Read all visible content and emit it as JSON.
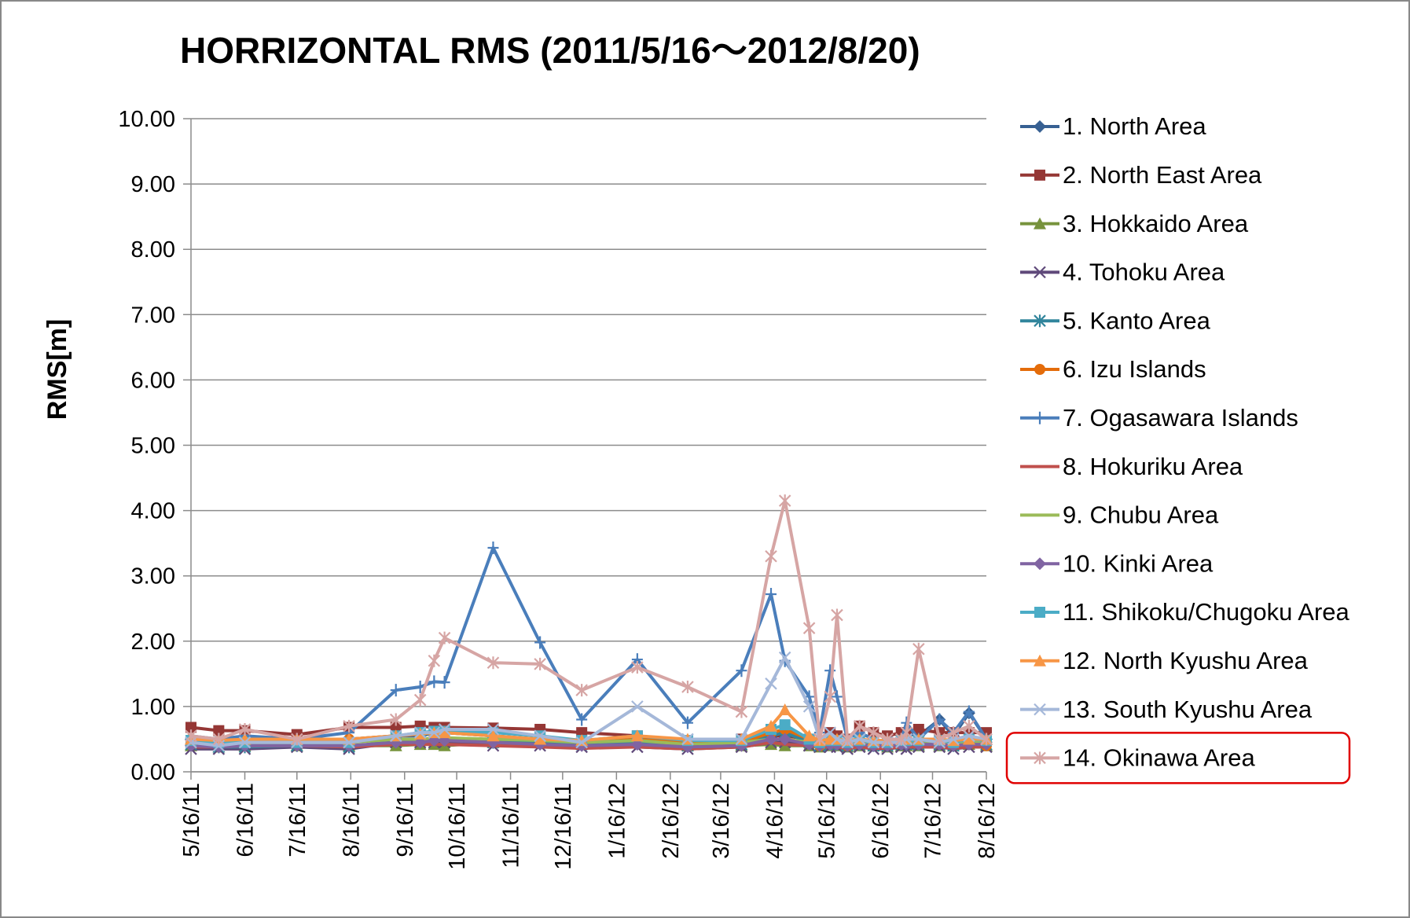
{
  "chart_data": {
    "type": "line",
    "title": "HORRIZONTAL RMS  (2011/5/16～2012/8/20)",
    "y_label": "RMS[m]",
    "x": [
      "2011-05-16",
      "2011-06-01",
      "2011-06-16",
      "2011-07-16",
      "2011-08-15",
      "2011-09-11",
      "2011-09-25",
      "2011-10-03",
      "2011-10-09",
      "2011-11-06",
      "2011-12-03",
      "2011-12-27",
      "2012-01-28",
      "2012-02-26",
      "2012-03-28",
      "2012-04-14",
      "2012-04-22",
      "2012-05-06",
      "2012-05-12",
      "2012-05-18",
      "2012-05-22",
      "2012-05-28",
      "2012-06-04",
      "2012-06-12",
      "2012-06-20",
      "2012-06-28",
      "2012-07-01",
      "2012-07-08",
      "2012-07-20",
      "2012-07-28",
      "2012-08-06",
      "2012-08-16"
    ],
    "xlim": [
      "2011-05-16",
      "2012-08-16"
    ],
    "xticks": [
      {
        "value": "2011-05-16",
        "label": "5/16/11"
      },
      {
        "value": "2011-06-16",
        "label": "6/16/11"
      },
      {
        "value": "2011-07-16",
        "label": "7/16/11"
      },
      {
        "value": "2011-08-16",
        "label": "8/16/11"
      },
      {
        "value": "2011-09-16",
        "label": "9/16/11"
      },
      {
        "value": "2011-10-16",
        "label": "10/16/11"
      },
      {
        "value": "2011-11-16",
        "label": "11/16/11"
      },
      {
        "value": "2011-12-16",
        "label": "12/16/11"
      },
      {
        "value": "2012-01-16",
        "label": "1/16/12"
      },
      {
        "value": "2012-02-16",
        "label": "2/16/12"
      },
      {
        "value": "2012-03-16",
        "label": "3/16/12"
      },
      {
        "value": "2012-04-16",
        "label": "4/16/12"
      },
      {
        "value": "2012-05-16",
        "label": "5/16/12"
      },
      {
        "value": "2012-06-16",
        "label": "6/16/12"
      },
      {
        "value": "2012-07-16",
        "label": "7/16/12"
      },
      {
        "value": "2012-08-16",
        "label": "8/16/12"
      }
    ],
    "ylim": [
      0,
      10
    ],
    "yticks": [
      {
        "value": 0,
        "label": "0.00"
      },
      {
        "value": 1,
        "label": "1.00"
      },
      {
        "value": 2,
        "label": "2.00"
      },
      {
        "value": 3,
        "label": "3.00"
      },
      {
        "value": 4,
        "label": "4.00"
      },
      {
        "value": 5,
        "label": "5.00"
      },
      {
        "value": 6,
        "label": "6.00"
      },
      {
        "value": 7,
        "label": "7.00"
      },
      {
        "value": 8,
        "label": "8.00"
      },
      {
        "value": 9,
        "label": "9.00"
      },
      {
        "value": 10,
        "label": "10.00"
      }
    ],
    "grid": true,
    "legend": "right",
    "series": [
      {
        "name": "1. North Area",
        "color": "#376092",
        "marker": "diamond",
        "values": [
          0.5,
          0.45,
          0.5,
          0.5,
          0.5,
          0.55,
          0.55,
          0.6,
          0.6,
          0.55,
          0.5,
          0.45,
          0.5,
          0.45,
          0.45,
          0.55,
          0.6,
          0.5,
          0.45,
          0.5,
          0.5,
          0.45,
          0.5,
          0.45,
          0.45,
          0.5,
          0.6,
          0.55,
          0.8,
          0.55,
          0.9,
          0.5
        ]
      },
      {
        "name": "2. North East Area",
        "color": "#953735",
        "marker": "square",
        "values": [
          0.68,
          0.63,
          0.63,
          0.57,
          0.68,
          0.68,
          0.7,
          0.68,
          0.68,
          0.67,
          0.65,
          0.6,
          0.55,
          0.45,
          0.5,
          0.55,
          0.55,
          0.5,
          0.45,
          0.6,
          0.55,
          0.5,
          0.7,
          0.6,
          0.55,
          0.6,
          0.6,
          0.65,
          0.6,
          0.6,
          0.6,
          0.6
        ]
      },
      {
        "name": "3. Hokkaido Area",
        "color": "#77933c",
        "marker": "triangle",
        "values": [
          0.4,
          0.38,
          0.4,
          0.4,
          0.4,
          0.4,
          0.42,
          0.42,
          0.4,
          0.45,
          0.45,
          0.42,
          0.45,
          0.4,
          0.4,
          0.42,
          0.4,
          0.4,
          0.38,
          0.4,
          0.4,
          0.38,
          0.4,
          0.4,
          0.38,
          0.4,
          0.4,
          0.4,
          0.4,
          0.4,
          0.42,
          0.4
        ]
      },
      {
        "name": "4. Tohoku Area",
        "color": "#5f497a",
        "marker": "x",
        "values": [
          0.35,
          0.35,
          0.35,
          0.38,
          0.35,
          0.45,
          0.45,
          0.45,
          0.45,
          0.4,
          0.4,
          0.38,
          0.38,
          0.35,
          0.38,
          0.45,
          0.45,
          0.4,
          0.38,
          0.38,
          0.38,
          0.35,
          0.38,
          0.35,
          0.35,
          0.38,
          0.35,
          0.38,
          0.38,
          0.35,
          0.38,
          0.38
        ]
      },
      {
        "name": "5. Kanto Area",
        "color": "#31859c",
        "marker": "asterisk",
        "values": [
          0.42,
          0.38,
          0.38,
          0.4,
          0.38,
          0.48,
          0.5,
          0.5,
          0.5,
          0.45,
          0.45,
          0.42,
          0.45,
          0.4,
          0.42,
          0.55,
          0.6,
          0.45,
          0.4,
          0.42,
          0.42,
          0.4,
          0.42,
          0.4,
          0.4,
          0.42,
          0.42,
          0.42,
          0.42,
          0.4,
          0.45,
          0.42
        ]
      },
      {
        "name": "6. Izu Islands",
        "color": "#e46c0a",
        "marker": "circle",
        "values": [
          0.5,
          0.45,
          0.5,
          0.48,
          0.5,
          0.55,
          0.58,
          0.6,
          0.6,
          0.55,
          0.5,
          0.45,
          0.5,
          0.45,
          0.45,
          0.6,
          0.65,
          0.5,
          0.4,
          0.45,
          0.45,
          0.4,
          0.45,
          0.42,
          0.42,
          0.45,
          0.45,
          0.45,
          0.45,
          0.42,
          0.45,
          0.4
        ]
      },
      {
        "name": "7. Ogasawara Islands",
        "color": "#4a7ebb",
        "marker": "plus",
        "values": [
          0.55,
          0.5,
          0.55,
          0.5,
          0.6,
          1.25,
          1.3,
          1.38,
          1.37,
          3.43,
          1.98,
          0.8,
          1.72,
          0.75,
          1.55,
          2.72,
          1.7,
          1.15,
          0.6,
          1.55,
          1.15,
          0.5,
          0.6,
          0.5,
          0.45,
          0.5,
          0.75,
          0.5,
          0.8,
          0.6,
          0.92,
          0.5
        ]
      },
      {
        "name": "8. Hokuriku Area",
        "color": "#c0504d",
        "marker": "none",
        "values": [
          0.38,
          0.38,
          0.4,
          0.4,
          0.38,
          0.42,
          0.42,
          0.42,
          0.42,
          0.4,
          0.38,
          0.36,
          0.38,
          0.35,
          0.38,
          0.45,
          0.42,
          0.4,
          0.38,
          0.38,
          0.38,
          0.36,
          0.38,
          0.36,
          0.36,
          0.38,
          0.38,
          0.38,
          0.38,
          0.36,
          0.38,
          0.38
        ]
      },
      {
        "name": "9. Chubu Area",
        "color": "#9bbb59",
        "marker": "none",
        "values": [
          0.45,
          0.42,
          0.45,
          0.45,
          0.45,
          0.5,
          0.5,
          0.52,
          0.52,
          0.5,
          0.48,
          0.45,
          0.48,
          0.42,
          0.45,
          0.5,
          0.5,
          0.45,
          0.42,
          0.45,
          0.45,
          0.42,
          0.45,
          0.42,
          0.42,
          0.45,
          0.45,
          0.45,
          0.45,
          0.42,
          0.45,
          0.45
        ]
      },
      {
        "name": "10. Kinki Area",
        "color": "#8064a2",
        "marker": "diamond",
        "values": [
          0.4,
          0.38,
          0.4,
          0.4,
          0.4,
          0.45,
          0.45,
          0.48,
          0.48,
          0.45,
          0.42,
          0.4,
          0.42,
          0.38,
          0.4,
          0.5,
          0.5,
          0.42,
          0.4,
          0.42,
          0.42,
          0.4,
          0.42,
          0.4,
          0.4,
          0.42,
          0.42,
          0.42,
          0.42,
          0.4,
          0.42,
          0.42
        ]
      },
      {
        "name": "11. Shikoku/Chugoku Area",
        "color": "#4bacc6",
        "marker": "square",
        "values": [
          0.48,
          0.45,
          0.45,
          0.45,
          0.45,
          0.55,
          0.6,
          0.62,
          0.62,
          0.6,
          0.55,
          0.48,
          0.55,
          0.48,
          0.48,
          0.65,
          0.72,
          0.5,
          0.45,
          0.48,
          0.48,
          0.45,
          0.48,
          0.45,
          0.45,
          0.48,
          0.48,
          0.48,
          0.48,
          0.45,
          0.5,
          0.48
        ]
      },
      {
        "name": "12. North Kyushu Area",
        "color": "#f79646",
        "marker": "triangle",
        "values": [
          0.5,
          0.48,
          0.5,
          0.5,
          0.5,
          0.55,
          0.58,
          0.6,
          0.6,
          0.55,
          0.5,
          0.48,
          0.55,
          0.5,
          0.5,
          0.7,
          0.95,
          0.55,
          0.48,
          0.5,
          0.5,
          0.48,
          0.5,
          0.48,
          0.48,
          0.5,
          0.5,
          0.5,
          0.5,
          0.48,
          0.5,
          0.5
        ]
      },
      {
        "name": "13. South Kyushu Area",
        "color": "#a5b8d9",
        "marker": "x",
        "values": [
          0.45,
          0.4,
          0.45,
          0.45,
          0.45,
          0.55,
          0.6,
          0.6,
          0.65,
          0.65,
          0.55,
          0.45,
          1.0,
          0.5,
          0.5,
          1.35,
          1.75,
          1.0,
          0.5,
          0.6,
          0.5,
          0.45,
          0.5,
          0.45,
          0.45,
          0.45,
          0.5,
          0.5,
          0.45,
          0.5,
          0.55,
          0.5
        ]
      },
      {
        "name": "14. Okinawa Area",
        "color": "#d6a5a4",
        "marker": "asterisk",
        "values": [
          0.55,
          0.5,
          0.65,
          0.5,
          0.7,
          0.8,
          1.1,
          1.7,
          2.05,
          1.67,
          1.65,
          1.25,
          1.6,
          1.3,
          0.92,
          3.3,
          4.15,
          2.2,
          0.5,
          1.15,
          2.4,
          0.5,
          0.7,
          0.6,
          0.5,
          0.5,
          0.6,
          1.88,
          0.5,
          0.6,
          0.7,
          0.5
        ]
      }
    ]
  }
}
